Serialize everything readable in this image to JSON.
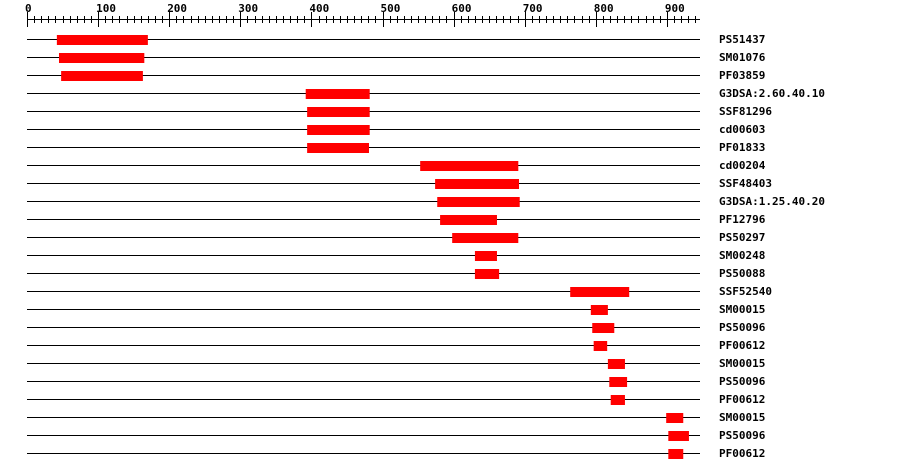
{
  "chart_data": {
    "type": "domain-architecture",
    "axis": {
      "range": [
        0,
        945
      ],
      "major_tick_step": 100,
      "minor_tick_step": 10,
      "tick_labels": [
        "0",
        "100",
        "200",
        "300",
        "400",
        "500",
        "600",
        "700",
        "800",
        "900"
      ]
    },
    "bar_color": "#ff0000",
    "tracks": [
      {
        "label": "PS51437",
        "start": 42,
        "end": 170
      },
      {
        "label": "SM01076",
        "start": 45,
        "end": 165
      },
      {
        "label": "PF03859",
        "start": 48,
        "end": 163
      },
      {
        "label": "G3DSA:2.60.40.10",
        "start": 392,
        "end": 482
      },
      {
        "label": "SSF81296",
        "start": 394,
        "end": 482
      },
      {
        "label": "cd00603",
        "start": 394,
        "end": 482
      },
      {
        "label": "PF01833",
        "start": 394,
        "end": 481
      },
      {
        "label": "cd00204",
        "start": 553,
        "end": 691
      },
      {
        "label": "SSF48403",
        "start": 574,
        "end": 692
      },
      {
        "label": "G3DSA:1.25.40.20",
        "start": 577,
        "end": 693
      },
      {
        "label": "PF12796",
        "start": 581,
        "end": 661
      },
      {
        "label": "PS50297",
        "start": 598,
        "end": 691
      },
      {
        "label": "SM00248",
        "start": 630,
        "end": 661
      },
      {
        "label": "PS50088",
        "start": 630,
        "end": 664
      },
      {
        "label": "SSF52540",
        "start": 764,
        "end": 847
      },
      {
        "label": "SM00015",
        "start": 793,
        "end": 817
      },
      {
        "label": "PS50096",
        "start": 795,
        "end": 826
      },
      {
        "label": "PF00612",
        "start": 797,
        "end": 816
      },
      {
        "label": "SM00015",
        "start": 817,
        "end": 841
      },
      {
        "label": "PS50096",
        "start": 819,
        "end": 844
      },
      {
        "label": "PF00612",
        "start": 821,
        "end": 841
      },
      {
        "label": "SM00015",
        "start": 899,
        "end": 923
      },
      {
        "label": "PS50096",
        "start": 902,
        "end": 931
      },
      {
        "label": "PF00612",
        "start": 902,
        "end": 923
      }
    ]
  }
}
